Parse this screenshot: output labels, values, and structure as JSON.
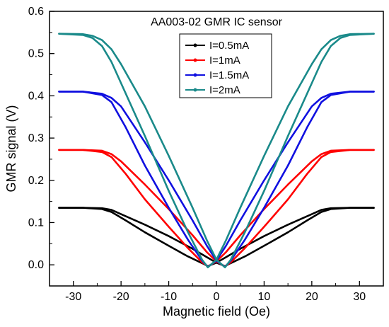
{
  "chart_data": {
    "type": "line",
    "title": "AA003-02 GMR IC sensor",
    "xlabel": "Magnetic field (Oe)",
    "ylabel": "GMR signal (V)",
    "xlim": [
      -35,
      35
    ],
    "ylim": [
      -0.05,
      0.6
    ],
    "xticks": [
      "-30",
      "-20",
      "-10",
      "0",
      "10",
      "20",
      "30"
    ],
    "yticks": [
      "0.0",
      "0.1",
      "0.2",
      "0.3",
      "0.4",
      "0.5",
      "0.6"
    ],
    "grid": false,
    "legend_position": "top-center",
    "series": [
      {
        "name": "I=0.5mA",
        "color": "#000000",
        "sweep_up": [
          [
            -33,
            0.135
          ],
          [
            -28,
            0.135
          ],
          [
            -24,
            0.134
          ],
          [
            -22,
            0.13
          ],
          [
            -20,
            0.12
          ],
          [
            -15,
            0.095
          ],
          [
            -10,
            0.068
          ],
          [
            -5,
            0.038
          ],
          [
            -2,
            0.018
          ],
          [
            0,
            0.005
          ],
          [
            1.8,
            -0.003
          ],
          [
            3,
            0.004
          ],
          [
            6,
            0.02
          ],
          [
            10,
            0.045
          ],
          [
            15,
            0.077
          ],
          [
            19,
            0.105
          ],
          [
            22,
            0.125
          ],
          [
            24,
            0.132
          ],
          [
            28,
            0.135
          ],
          [
            33,
            0.135
          ]
        ],
        "sweep_down": [
          [
            33,
            0.135
          ],
          [
            28,
            0.135
          ],
          [
            24,
            0.134
          ],
          [
            22,
            0.13
          ],
          [
            20,
            0.12
          ],
          [
            15,
            0.095
          ],
          [
            10,
            0.068
          ],
          [
            5,
            0.038
          ],
          [
            2,
            0.018
          ],
          [
            0,
            0.005
          ],
          [
            -1.8,
            -0.003
          ],
          [
            -3,
            0.004
          ],
          [
            -6,
            0.02
          ],
          [
            -10,
            0.045
          ],
          [
            -15,
            0.077
          ],
          [
            -19,
            0.105
          ],
          [
            -22,
            0.125
          ],
          [
            -24,
            0.132
          ],
          [
            -28,
            0.135
          ],
          [
            -33,
            0.135
          ]
        ]
      },
      {
        "name": "I=1mA",
        "color": "#ff0000",
        "sweep_up": [
          [
            -33,
            0.272
          ],
          [
            -28,
            0.272
          ],
          [
            -24,
            0.27
          ],
          [
            -22,
            0.262
          ],
          [
            -20,
            0.245
          ],
          [
            -15,
            0.19
          ],
          [
            -10,
            0.132
          ],
          [
            -5,
            0.07
          ],
          [
            -2,
            0.03
          ],
          [
            0,
            0.008
          ],
          [
            1.8,
            -0.004
          ],
          [
            3,
            0.006
          ],
          [
            6,
            0.04
          ],
          [
            10,
            0.09
          ],
          [
            15,
            0.155
          ],
          [
            19,
            0.215
          ],
          [
            22,
            0.255
          ],
          [
            24,
            0.267
          ],
          [
            28,
            0.272
          ],
          [
            33,
            0.272
          ]
        ],
        "sweep_down": [
          [
            33,
            0.272
          ],
          [
            28,
            0.272
          ],
          [
            24,
            0.27
          ],
          [
            22,
            0.262
          ],
          [
            20,
            0.245
          ],
          [
            15,
            0.19
          ],
          [
            10,
            0.132
          ],
          [
            5,
            0.07
          ],
          [
            2,
            0.03
          ],
          [
            0,
            0.008
          ],
          [
            -1.8,
            -0.004
          ],
          [
            -3,
            0.006
          ],
          [
            -6,
            0.04
          ],
          [
            -10,
            0.09
          ],
          [
            -15,
            0.155
          ],
          [
            -19,
            0.215
          ],
          [
            -22,
            0.255
          ],
          [
            -24,
            0.267
          ],
          [
            -28,
            0.272
          ],
          [
            -33,
            0.272
          ]
        ]
      },
      {
        "name": "I=1.5mA",
        "color": "#1010e0",
        "sweep_up": [
          [
            -33,
            0.41
          ],
          [
            -28,
            0.41
          ],
          [
            -24,
            0.405
          ],
          [
            -22,
            0.395
          ],
          [
            -20,
            0.375
          ],
          [
            -15,
            0.29
          ],
          [
            -10,
            0.2
          ],
          [
            -5,
            0.105
          ],
          [
            -2,
            0.045
          ],
          [
            0,
            0.01
          ],
          [
            1.8,
            -0.005
          ],
          [
            3,
            0.01
          ],
          [
            6,
            0.06
          ],
          [
            10,
            0.135
          ],
          [
            15,
            0.235
          ],
          [
            19,
            0.325
          ],
          [
            22,
            0.385
          ],
          [
            24,
            0.402
          ],
          [
            28,
            0.41
          ],
          [
            33,
            0.41
          ]
        ],
        "sweep_down": [
          [
            33,
            0.41
          ],
          [
            28,
            0.41
          ],
          [
            24,
            0.405
          ],
          [
            22,
            0.395
          ],
          [
            20,
            0.375
          ],
          [
            15,
            0.29
          ],
          [
            10,
            0.2
          ],
          [
            5,
            0.105
          ],
          [
            2,
            0.045
          ],
          [
            0,
            0.01
          ],
          [
            -1.8,
            -0.005
          ],
          [
            -3,
            0.01
          ],
          [
            -6,
            0.06
          ],
          [
            -10,
            0.135
          ],
          [
            -15,
            0.235
          ],
          [
            -19,
            0.325
          ],
          [
            -22,
            0.385
          ],
          [
            -24,
            0.402
          ],
          [
            -28,
            0.41
          ],
          [
            -33,
            0.41
          ]
        ]
      },
      {
        "name": "I=2mA",
        "color": "#1a8a8a",
        "sweep_up": [
          [
            -33,
            0.547
          ],
          [
            -28,
            0.546
          ],
          [
            -26,
            0.542
          ],
          [
            -24,
            0.532
          ],
          [
            -22,
            0.51
          ],
          [
            -20,
            0.475
          ],
          [
            -15,
            0.375
          ],
          [
            -10,
            0.258
          ],
          [
            -5,
            0.135
          ],
          [
            -2,
            0.058
          ],
          [
            0,
            0.012
          ],
          [
            1.8,
            -0.006
          ],
          [
            3,
            0.012
          ],
          [
            6,
            0.078
          ],
          [
            10,
            0.175
          ],
          [
            15,
            0.305
          ],
          [
            20,
            0.43
          ],
          [
            22,
            0.48
          ],
          [
            24,
            0.518
          ],
          [
            26,
            0.537
          ],
          [
            28,
            0.544
          ],
          [
            33,
            0.547
          ]
        ],
        "sweep_down": [
          [
            33,
            0.547
          ],
          [
            28,
            0.546
          ],
          [
            26,
            0.542
          ],
          [
            24,
            0.532
          ],
          [
            22,
            0.51
          ],
          [
            20,
            0.475
          ],
          [
            15,
            0.375
          ],
          [
            10,
            0.258
          ],
          [
            5,
            0.135
          ],
          [
            2,
            0.058
          ],
          [
            0,
            0.012
          ],
          [
            -1.8,
            -0.006
          ],
          [
            -3,
            0.012
          ],
          [
            -6,
            0.078
          ],
          [
            -10,
            0.175
          ],
          [
            -15,
            0.305
          ],
          [
            -20,
            0.43
          ],
          [
            -22,
            0.48
          ],
          [
            -24,
            0.518
          ],
          [
            -26,
            0.537
          ],
          [
            -28,
            0.544
          ],
          [
            -33,
            0.547
          ]
        ]
      }
    ]
  }
}
